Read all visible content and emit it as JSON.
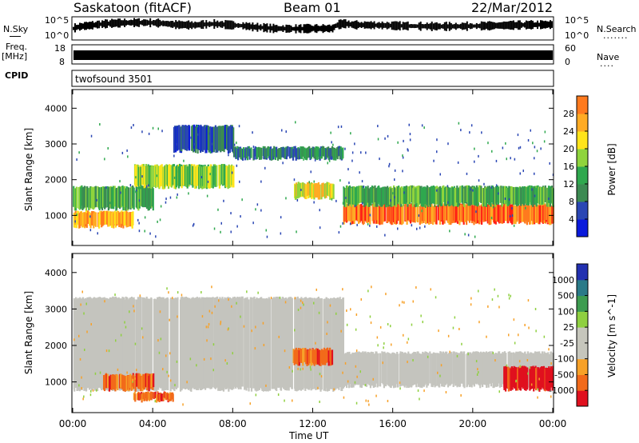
{
  "header": {
    "station": "Saskatoon (fitACF)",
    "beam": "Beam 01",
    "date": "22/Mar/2012"
  },
  "left_labels": {
    "nsky": "N.Sky",
    "freq": "Freq.",
    "freq_unit": "[MHz]",
    "cpid": "CPID"
  },
  "right_labels": {
    "nsearch": "N.Search",
    "nave": "Nave"
  },
  "noise_axis": {
    "left_top": "10^5",
    "left_bottom": "10^0",
    "right_top": "10^5",
    "right_bottom": "10^0"
  },
  "freq_axis": {
    "left_top": "18",
    "left_bottom": "8",
    "right_top": "60",
    "right_bottom": "0"
  },
  "cpid_text": "twofsound 3501",
  "time_axis": {
    "label": "Time UT",
    "ticks": [
      "00:00",
      "04:00",
      "08:00",
      "12:00",
      "16:00",
      "20:00",
      "00:00"
    ]
  },
  "colors": {
    "power_scale": [
      "#0a1adc",
      "#2a46b4",
      "#3c8a52",
      "#2fa84e",
      "#8fd43c",
      "#ffe41a",
      "#ffab24",
      "#ff7a1e",
      "#ff1e16"
    ],
    "velocity_scale": [
      "#e0101e",
      "#f26a1a",
      "#f7a128",
      "#c6c6bc",
      "#c6c6bc",
      "#8fd040",
      "#3d9c50",
      "#2a7a88",
      "#2230b0"
    ],
    "ground_scatter": "#c4c4be"
  },
  "chart_data": [
    {
      "type": "line",
      "title": "N.Sky / N.Search noise",
      "yscale": "log",
      "ylim": [
        1,
        100000
      ],
      "x_hours": [
        0,
        1,
        2,
        3,
        4,
        5,
        6,
        7,
        8,
        9,
        10,
        11,
        12,
        13,
        13.5,
        14,
        15,
        16,
        17,
        18,
        19,
        20,
        21,
        22,
        23,
        24
      ],
      "series": [
        {
          "values": [
            300,
            2000,
            6000,
            9000,
            8000,
            3000,
            2000,
            4000,
            2000,
            700,
            300,
            250,
            300,
            300,
            5000,
            2500,
            2000,
            1500,
            1200,
            1000,
            1000,
            1200,
            1500,
            2000,
            2500,
            3000
          ]
        }
      ]
    },
    {
      "type": "line",
      "title": "Freq. / Nave",
      "xlabel": "Time UT",
      "ylim": [
        8,
        18
      ],
      "x_hours": [
        0,
        24
      ],
      "series": [
        {
          "values": [
            11,
            11
          ]
        }
      ]
    },
    {
      "type": "heatmap",
      "title": "Power",
      "xlabel": "Time UT",
      "ylabel": "Slant Range [km]",
      "xlim": [
        "00:00",
        "00:00"
      ],
      "ylim": [
        180,
        4500
      ],
      "y_ticks": [
        1000,
        2000,
        3000,
        4000
      ],
      "colorbar": {
        "label": "Power [dB]",
        "ticks": [
          4,
          8,
          12,
          16,
          20,
          24,
          28
        ]
      },
      "regions": [
        {
          "t_start": 0.0,
          "t_end": 3.0,
          "range_km": [
            700,
            1100
          ],
          "value_db": 26
        },
        {
          "t_start": 0.0,
          "t_end": 4.0,
          "range_km": [
            1200,
            1800
          ],
          "value_db": 14
        },
        {
          "t_start": 3.0,
          "t_end": 8.0,
          "range_km": [
            1800,
            2400
          ],
          "value_db": 16
        },
        {
          "t_start": 5.0,
          "t_end": 8.0,
          "range_km": [
            2800,
            3500
          ],
          "value_db": 6
        },
        {
          "t_start": 8.0,
          "t_end": 13.5,
          "range_km": [
            2600,
            2900
          ],
          "value_db": 10
        },
        {
          "t_start": 11.0,
          "t_end": 13.0,
          "range_km": [
            1500,
            1900
          ],
          "value_db": 22
        },
        {
          "t_start": 13.5,
          "t_end": 24.0,
          "range_km": [
            800,
            1300
          ],
          "value_db": 28
        },
        {
          "t_start": 13.5,
          "t_end": 24.0,
          "range_km": [
            1300,
            1800
          ],
          "value_db": 12
        }
      ]
    },
    {
      "type": "heatmap",
      "title": "Velocity",
      "xlabel": "Time UT",
      "ylabel": "Slant Range [km]",
      "xlim": [
        "00:00",
        "00:00"
      ],
      "ylim": [
        180,
        4500
      ],
      "y_ticks": [
        1000,
        2000,
        3000,
        4000
      ],
      "colorbar": {
        "label": "Velocity [m s^-1]",
        "ticks": [
          -1000,
          -500,
          -100,
          -25,
          25,
          100,
          500,
          1000
        ]
      },
      "regions": [
        {
          "t_start": 0.0,
          "t_end": 13.5,
          "range_km": [
            800,
            3300
          ],
          "value": 0,
          "ground_scatter": true
        },
        {
          "t_start": 1.5,
          "t_end": 4.0,
          "range_km": [
            800,
            1200
          ],
          "value": -300
        },
        {
          "t_start": 3.0,
          "t_end": 5.0,
          "range_km": [
            500,
            700
          ],
          "value": -400
        },
        {
          "t_start": 11.0,
          "t_end": 13.0,
          "range_km": [
            1500,
            1900
          ],
          "value": -200
        },
        {
          "t_start": 13.5,
          "t_end": 24.0,
          "range_km": [
            900,
            1800
          ],
          "value": 0,
          "ground_scatter": true
        },
        {
          "t_start": 21.5,
          "t_end": 24.0,
          "range_km": [
            800,
            1400
          ],
          "value": -500
        }
      ]
    }
  ]
}
